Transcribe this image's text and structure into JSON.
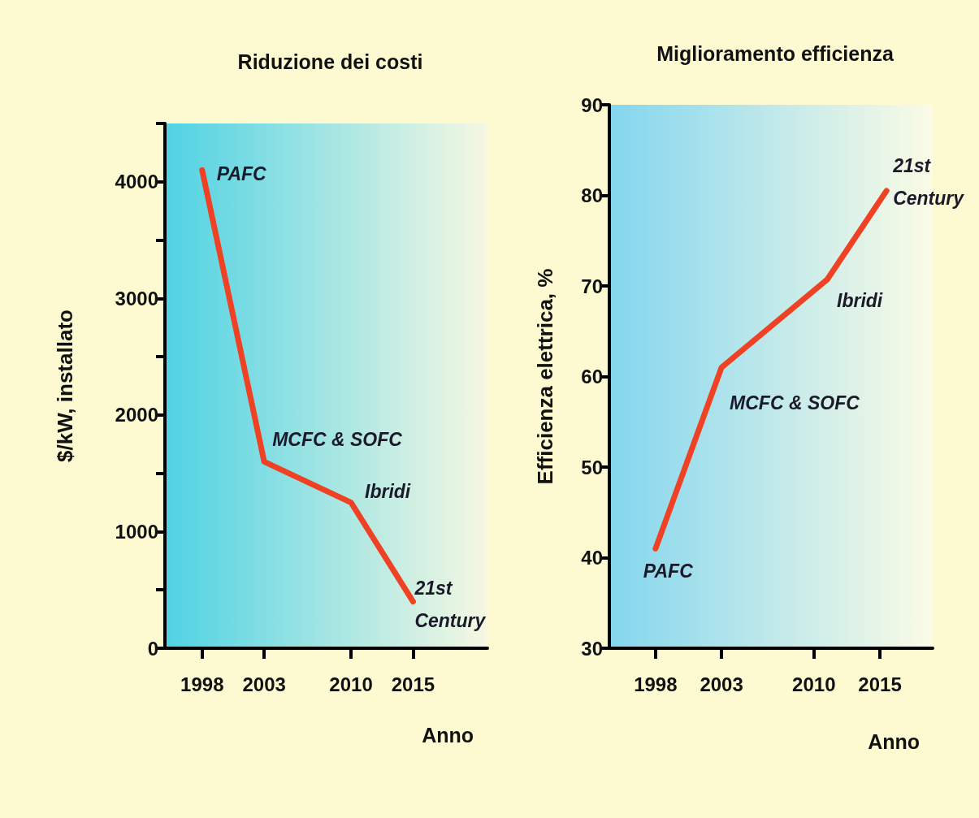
{
  "chart_data": [
    {
      "type": "line",
      "title": "Riduzione dei costi",
      "xlabel": "Anno",
      "ylabel": "$/kW, installato",
      "x": [
        1998,
        2003,
        2010,
        2015
      ],
      "series": [
        {
          "color": "#ef4123",
          "values": [
            4100,
            1600,
            1250,
            400
          ]
        }
      ],
      "xlim": [
        1995,
        2021
      ],
      "xticks": [
        1998,
        2003,
        2010,
        2015
      ],
      "ylim": [
        0,
        4500
      ],
      "yticks": [
        0,
        {
          "value": 500,
          "label": null
        },
        1000,
        {
          "value": 1500,
          "label": null
        },
        2000,
        {
          "value": 2500,
          "label": null
        },
        3000,
        {
          "value": 3500,
          "label": null
        },
        4000,
        {
          "value": 4500,
          "label": null
        }
      ],
      "annotations": [
        {
          "text": "PAFC",
          "x": 1998,
          "y": 4100
        },
        {
          "text": "MCFC & SOFC",
          "x": 2003,
          "y": 1600
        },
        {
          "text": "Ibridi",
          "x": 2010,
          "y": 1250
        },
        {
          "text": "21st\nCentury",
          "x": 2015,
          "y": 400
        }
      ]
    },
    {
      "type": "line",
      "title": "Miglioramento efficienza",
      "xlabel": "Anno",
      "ylabel": "Efficienza elettrica, %",
      "x": [
        1998,
        2003,
        2011,
        2015.5
      ],
      "series": [
        {
          "color": "#ef4123",
          "values": [
            41,
            61,
            70.7,
            80.5
          ]
        }
      ],
      "xlim": [
        1994.5,
        2019
      ],
      "xticks": [
        1998,
        2003,
        2010,
        2015
      ],
      "ylim": [
        30,
        90
      ],
      "yticks": [
        30,
        40,
        50,
        60,
        70,
        80,
        90
      ],
      "annotations": [
        {
          "text": "PAFC",
          "x": 1998,
          "y": 41
        },
        {
          "text": "MCFC & SOFC",
          "x": 2003,
          "y": 61
        },
        {
          "text": "Ibridi",
          "x": 2011,
          "y": 70.7
        },
        {
          "text": "21st\nCentury",
          "x": 2015.5,
          "y": 80.5
        }
      ]
    }
  ]
}
